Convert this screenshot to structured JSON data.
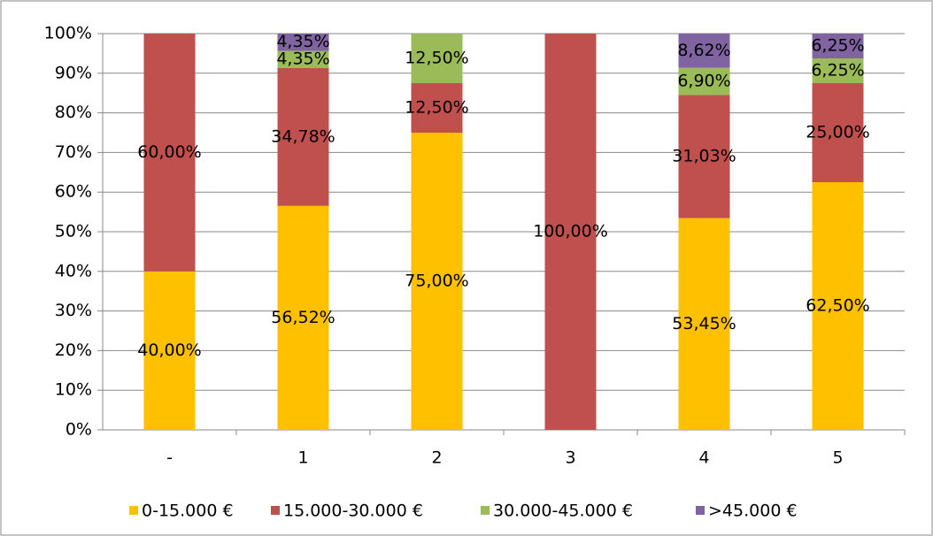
{
  "chart_data": {
    "type": "stacked_bar",
    "categories": [
      "-",
      "1",
      "2",
      "3",
      "4",
      "5"
    ],
    "series": [
      {
        "name": "0-15.000 €",
        "color": "#ffc000",
        "values": [
          40,
          56.52,
          75,
          0,
          53.45,
          62.5
        ],
        "value_labels": [
          "40,00%",
          "56,52%",
          "75,00%",
          null,
          "53,45%",
          "62,50%"
        ]
      },
      {
        "name": "15.000-30.000 €",
        "color": "#c0504d",
        "values": [
          60,
          34.78,
          12.5,
          100,
          31.03,
          25
        ],
        "value_labels": [
          "60,00%",
          "34,78%",
          "12,50%",
          "100,00%",
          "31,03%",
          "25,00%"
        ]
      },
      {
        "name": "30.000-45.000 €",
        "color": "#9bbb59",
        "values": [
          0,
          4.35,
          12.5,
          0,
          6.9,
          6.25
        ],
        "value_labels": [
          null,
          "4,35%",
          "12,50%",
          null,
          "6,90%",
          "6,25%"
        ]
      },
      {
        "name": ">45.000 €",
        "color": "#8064a2",
        "values": [
          0,
          4.35,
          0,
          0,
          8.62,
          6.25
        ],
        "value_labels": [
          null,
          "4,35%",
          null,
          null,
          "8,62%",
          "6,25%"
        ]
      }
    ],
    "ylim": [
      0,
      100
    ],
    "yticks": [
      {
        "value": 0,
        "label": "0%"
      },
      {
        "value": 10,
        "label": "10%"
      },
      {
        "value": 20,
        "label": "20%"
      },
      {
        "value": 30,
        "label": "30%"
      },
      {
        "value": 40,
        "label": "40%"
      },
      {
        "value": 50,
        "label": "50%"
      },
      {
        "value": 60,
        "label": "60%"
      },
      {
        "value": 70,
        "label": "70%"
      },
      {
        "value": 80,
        "label": "80%"
      },
      {
        "value": 90,
        "label": "90%"
      },
      {
        "value": 100,
        "label": "100%"
      }
    ],
    "grid": true,
    "legend": "bottom"
  }
}
